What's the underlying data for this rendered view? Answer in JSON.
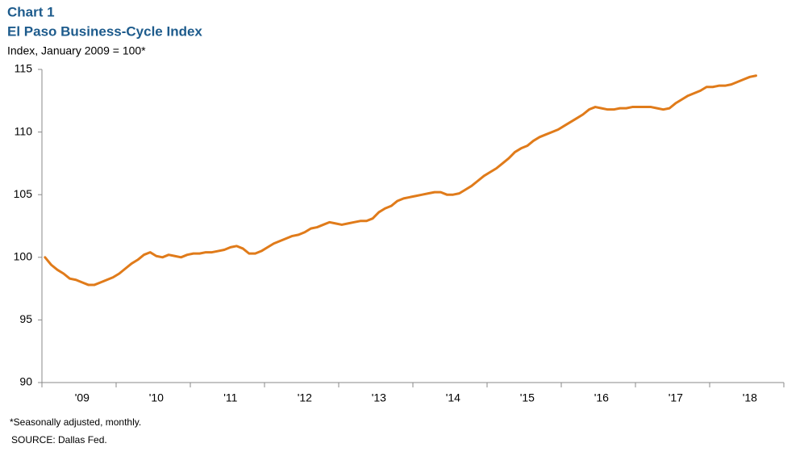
{
  "chart_data": {
    "type": "line",
    "title": "Chart 1",
    "subtitle": "El Paso Business-Cycle Index",
    "y_label": "Index, January 2009 = 100*",
    "notes": [
      "*Seasonally adjusted, monthly.",
      "SOURCE: Dallas Fed."
    ],
    "categories": [
      null,
      null,
      null,
      null,
      null,
      null,
      "'09",
      null,
      null,
      null,
      null,
      null,
      null,
      null,
      null,
      null,
      null,
      null,
      "'10",
      null,
      null,
      null,
      null,
      null,
      null,
      null,
      null,
      null,
      null,
      null,
      "'11",
      null,
      null,
      null,
      null,
      null,
      null,
      null,
      null,
      null,
      null,
      null,
      "'12",
      null,
      null,
      null,
      null,
      null,
      null,
      null,
      null,
      null,
      null,
      null,
      "'13",
      null,
      null,
      null,
      null,
      null,
      null,
      null,
      null,
      null,
      null,
      null,
      "'14",
      null,
      null,
      null,
      null,
      null,
      null,
      null,
      null,
      null,
      null,
      null,
      "'15",
      null,
      null,
      null,
      null,
      null,
      null,
      null,
      null,
      null,
      null,
      null,
      "'16",
      null,
      null,
      null,
      null,
      null,
      null,
      null,
      null,
      null,
      null,
      null,
      "'17",
      null,
      null,
      null,
      null,
      null,
      null,
      null,
      null,
      null,
      null,
      null,
      "'18",
      null
    ],
    "values": [
      100.0,
      99.4,
      99.0,
      98.7,
      98.3,
      98.2,
      98.0,
      97.8,
      97.8,
      98.0,
      98.2,
      98.4,
      98.7,
      99.1,
      99.5,
      99.8,
      100.2,
      100.4,
      100.1,
      100.0,
      100.2,
      100.1,
      100.0,
      100.2,
      100.3,
      100.3,
      100.4,
      100.4,
      100.5,
      100.6,
      100.8,
      100.9,
      100.7,
      100.3,
      100.3,
      100.5,
      100.8,
      101.1,
      101.3,
      101.5,
      101.7,
      101.8,
      102.0,
      102.3,
      102.4,
      102.6,
      102.8,
      102.7,
      102.6,
      102.7,
      102.8,
      102.9,
      102.9,
      103.1,
      103.6,
      103.9,
      104.1,
      104.5,
      104.7,
      104.8,
      104.9,
      105.0,
      105.1,
      105.2,
      105.2,
      105.0,
      105.0,
      105.1,
      105.4,
      105.7,
      106.1,
      106.5,
      106.8,
      107.1,
      107.5,
      107.9,
      108.4,
      108.7,
      108.9,
      109.3,
      109.6,
      109.8,
      110.0,
      110.2,
      110.5,
      110.8,
      111.1,
      111.4,
      111.8,
      112.0,
      111.9,
      111.8,
      111.8,
      111.9,
      111.9,
      112.0,
      112.0,
      112.0,
      112.0,
      111.9,
      111.8,
      111.9,
      112.3,
      112.6,
      112.9,
      113.1,
      113.3,
      113.6,
      113.6,
      113.7,
      113.7,
      113.8,
      114.0,
      114.2,
      114.4,
      114.5
    ],
    "color": "#e07b1a",
    "ylim": [
      90,
      115
    ],
    "yticks": [
      90,
      95,
      100,
      105,
      110,
      115
    ],
    "grid": false
  }
}
